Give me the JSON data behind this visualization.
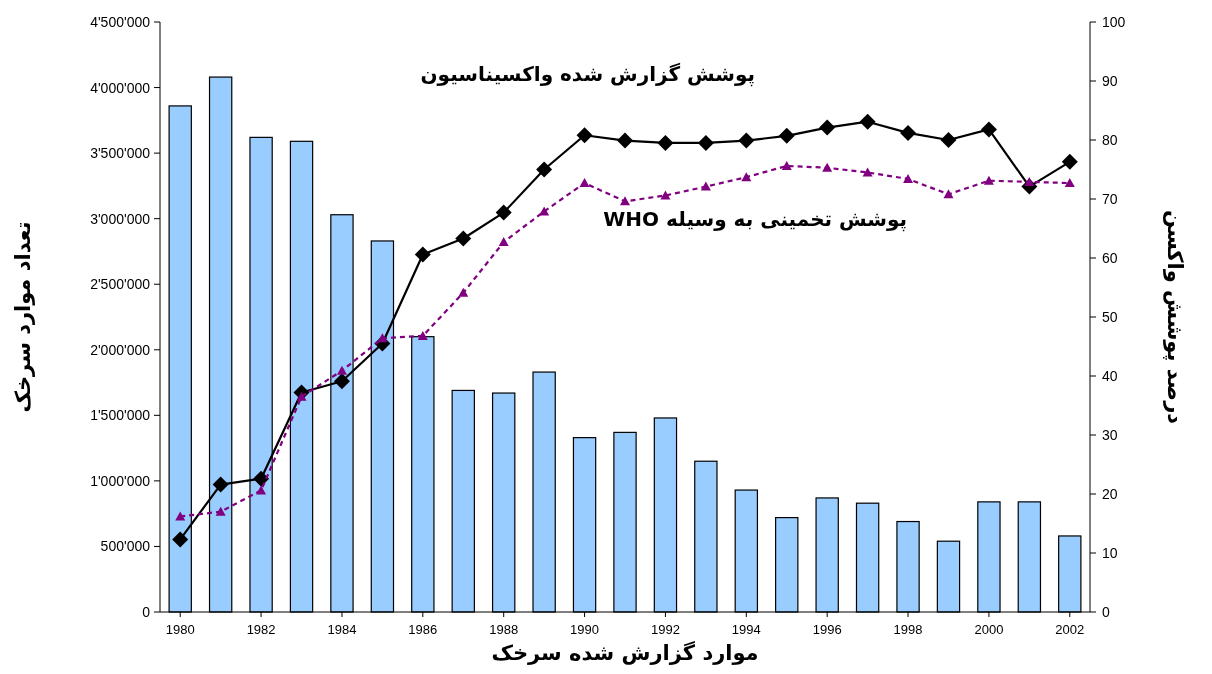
{
  "chart_data": {
    "type": "bar",
    "xlabel": "موارد گزارش شده سرخک",
    "ylabel": "تعداد موارد سرخک",
    "y2label": "درصد پوشش واکسن",
    "x": [
      1980,
      1981,
      1982,
      1983,
      1984,
      1985,
      1986,
      1987,
      1988,
      1989,
      1990,
      1991,
      1992,
      1993,
      1994,
      1995,
      1996,
      1997,
      1998,
      1999,
      2000,
      2001,
      2002
    ],
    "xlim": [
      1979.5,
      2002.5
    ],
    "xticks": [
      1980,
      1982,
      1984,
      1986,
      1988,
      1990,
      1992,
      1994,
      1996,
      1998,
      2000,
      2002
    ],
    "ylim": [
      0,
      4500000
    ],
    "yticks": [
      0,
      {
        "value": 500000,
        "label": "500'000"
      },
      {
        "value": 1000000,
        "label": "1'000'000"
      },
      {
        "value": 1500000,
        "label": "1'500'000"
      },
      {
        "value": 2000000,
        "label": "2'000'000"
      },
      {
        "value": 2500000,
        "label": "2'500'000"
      },
      {
        "value": 3000000,
        "label": "3'000'000"
      },
      {
        "value": 3500000,
        "label": "3'500'000"
      },
      {
        "value": 4000000,
        "label": "4'000'000"
      },
      {
        "value": 4500000,
        "label": "4'500'000"
      }
    ],
    "y2lim": [
      0,
      100
    ],
    "y2ticks": [
      0,
      10,
      20,
      30,
      40,
      50,
      60,
      70,
      80,
      90,
      100
    ],
    "series": [
      {
        "color": "#99ccff",
        "values": [
          3860000,
          4080000,
          3620000,
          3590000,
          3030000,
          2830000,
          2100000,
          1690000,
          1670000,
          1830000,
          1330000,
          1370000,
          1480000,
          1150000,
          930000,
          720000,
          870000,
          830000,
          690000,
          540000,
          840000,
          840000,
          580000
        ]
      },
      {
        "type": "line",
        "axis": "y2",
        "name": "پوشش گزارش شده واکسیناسیون",
        "color": "#000000",
        "marker": "diamond",
        "line_style": "solid",
        "values": [
          12.3,
          21.6,
          22.6,
          37.2,
          39.1,
          45.5,
          60.6,
          63.3,
          67.7,
          75.0,
          80.8,
          79.9,
          79.5,
          79.5,
          79.9,
          80.7,
          82.1,
          83.1,
          81.2,
          80.0,
          81.8,
          72.1,
          76.3
        ]
      },
      {
        "type": "line",
        "axis": "y2",
        "name": "پوشش تخمینی به وسیله WHO",
        "color": "#800080",
        "marker": "triangle",
        "line_style": "dashed",
        "values": [
          16.2,
          17.0,
          20.6,
          36.5,
          40.9,
          46.4,
          46.8,
          54.1,
          62.7,
          67.9,
          72.7,
          69.6,
          70.6,
          72.1,
          73.7,
          75.6,
          75.3,
          74.5,
          73.4,
          70.8,
          73.1,
          72.9,
          72.7
        ]
      }
    ]
  }
}
